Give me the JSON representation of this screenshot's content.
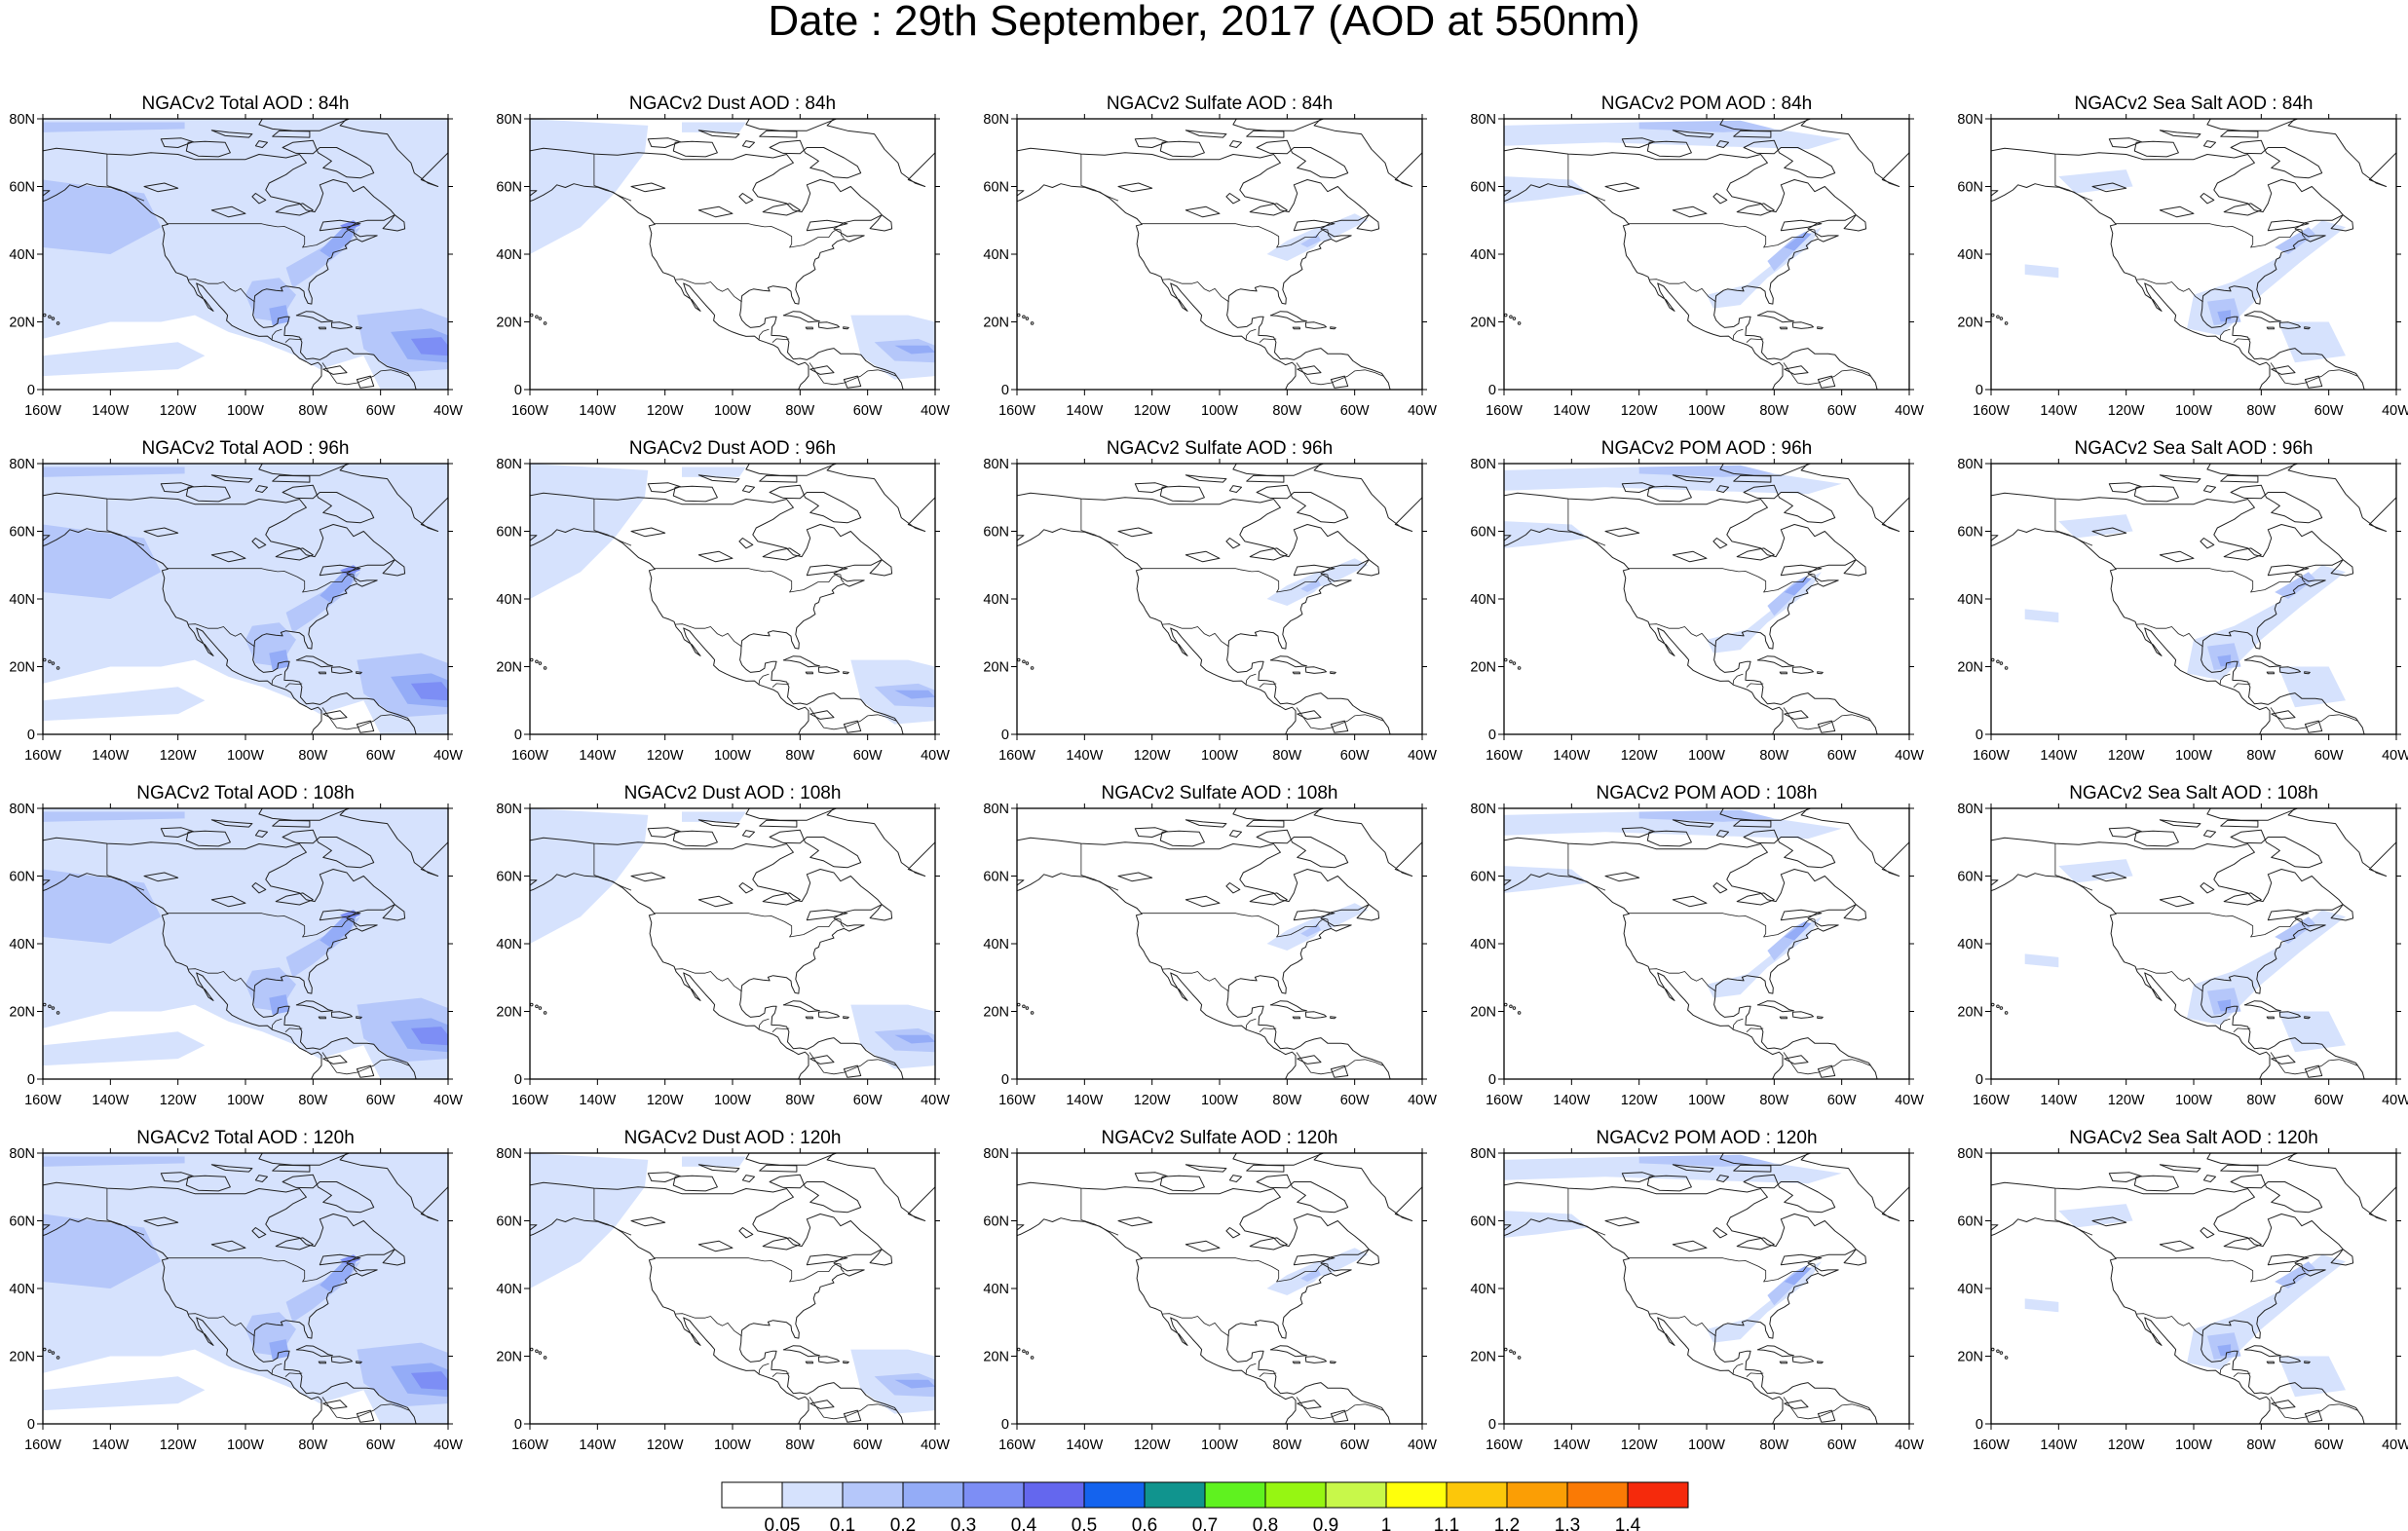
{
  "figure": {
    "title": "Date : 29th September, 2017 (AOD at 550nm)"
  },
  "axes": {
    "lat_labels": [
      "80N",
      "60N",
      "40N",
      "20N",
      "0"
    ],
    "lon_labels": [
      "160W",
      "140W",
      "120W",
      "100W",
      "80W",
      "60W",
      "40W"
    ],
    "lat_range": [
      0,
      80
    ],
    "lon_range": [
      -160,
      -40
    ]
  },
  "panels": [
    {
      "title": "NGACv2 Total AOD : 84h",
      "species": "total",
      "forecast_hour": 84
    },
    {
      "title": "NGACv2 Dust AOD : 84h",
      "species": "dust",
      "forecast_hour": 84
    },
    {
      "title": "NGACv2 Sulfate AOD : 84h",
      "species": "sulfate",
      "forecast_hour": 84
    },
    {
      "title": "NGACv2 POM AOD : 84h",
      "species": "pom",
      "forecast_hour": 84
    },
    {
      "title": "NGACv2 Sea Salt AOD : 84h",
      "species": "seasalt",
      "forecast_hour": 84
    },
    {
      "title": "NGACv2 Total AOD : 96h",
      "species": "total",
      "forecast_hour": 96
    },
    {
      "title": "NGACv2 Dust AOD : 96h",
      "species": "dust",
      "forecast_hour": 96
    },
    {
      "title": "NGACv2 Sulfate AOD : 96h",
      "species": "sulfate",
      "forecast_hour": 96
    },
    {
      "title": "NGACv2 POM AOD : 96h",
      "species": "pom",
      "forecast_hour": 96
    },
    {
      "title": "NGACv2 Sea Salt AOD : 96h",
      "species": "seasalt",
      "forecast_hour": 96
    },
    {
      "title": "NGACv2 Total AOD : 108h",
      "species": "total",
      "forecast_hour": 108
    },
    {
      "title": "NGACv2 Dust AOD : 108h",
      "species": "dust",
      "forecast_hour": 108
    },
    {
      "title": "NGACv2 Sulfate AOD : 108h",
      "species": "sulfate",
      "forecast_hour": 108
    },
    {
      "title": "NGACv2 POM AOD : 108h",
      "species": "pom",
      "forecast_hour": 108
    },
    {
      "title": "NGACv2 Sea Salt AOD : 108h",
      "species": "seasalt",
      "forecast_hour": 108
    },
    {
      "title": "NGACv2 Total AOD : 120h",
      "species": "total",
      "forecast_hour": 120
    },
    {
      "title": "NGACv2 Dust AOD : 120h",
      "species": "dust",
      "forecast_hour": 120
    },
    {
      "title": "NGACv2 Sulfate AOD : 120h",
      "species": "sulfate",
      "forecast_hour": 120
    },
    {
      "title": "NGACv2 POM AOD : 120h",
      "species": "pom",
      "forecast_hour": 120
    },
    {
      "title": "NGACv2 Sea Salt  AOD : 120h",
      "species": "seasalt",
      "forecast_hour": 120
    }
  ],
  "colorbar": {
    "colors": [
      "#ffffff",
      "#d6e2fd",
      "#b5c7fa",
      "#94acf7",
      "#7d8ef5",
      "#6467ee",
      "#1463ee",
      "#10948e",
      "#5ff21f",
      "#96f612",
      "#c8f84a",
      "#ffff0b",
      "#fcc70a",
      "#fb9e05",
      "#fa7a05",
      "#f52a0c"
    ],
    "labels": [
      "0.05",
      "0.1",
      "0.2",
      "0.3",
      "0.4",
      "0.5",
      "0.6",
      "0.7",
      "0.8",
      "0.9",
      "1",
      "1.1",
      "1.2",
      "1.3",
      "1.4"
    ]
  },
  "map_colors": {
    "coast": "#222222",
    "level_light": "#d6e2fd",
    "level_mid": "#b5c7fa",
    "level_high": "#94acf7",
    "level_peak": "#7d8ef5"
  }
}
